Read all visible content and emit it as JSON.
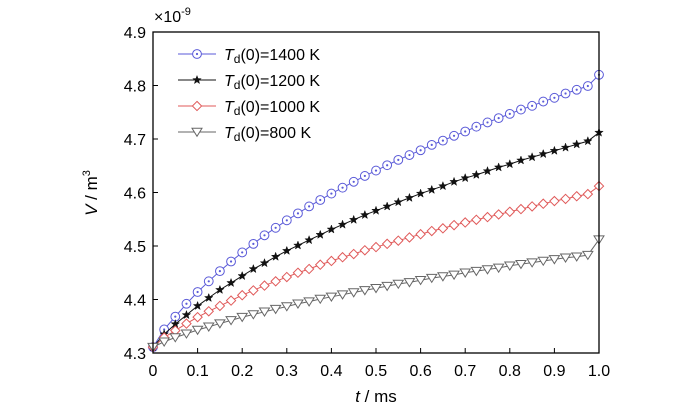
{
  "chart_data": {
    "type": "line",
    "xlabel_var": "t",
    "xlabel_unit": " / ms",
    "ylabel_var": "V",
    "ylabel_unit": " / m",
    "ylabel_sup": "3",
    "y_multiplier_base": "×10",
    "y_multiplier_exp": "-9",
    "xlim": [
      0,
      1.0
    ],
    "ylim": [
      4.3,
      4.9
    ],
    "x_ticks": [
      "0",
      "0.1",
      "0.2",
      "0.3",
      "0.4",
      "0.5",
      "0.6",
      "0.7",
      "0.8",
      "0.9",
      "1.0"
    ],
    "y_ticks": [
      "4.3",
      "4.4",
      "4.5",
      "4.6",
      "4.7",
      "4.8",
      "4.9"
    ],
    "grid": false,
    "legend_position": "top-left",
    "x": [
      0.0,
      0.025,
      0.05,
      0.075,
      0.1,
      0.125,
      0.15,
      0.175,
      0.2,
      0.225,
      0.25,
      0.275,
      0.3,
      0.325,
      0.35,
      0.375,
      0.4,
      0.425,
      0.45,
      0.475,
      0.5,
      0.525,
      0.55,
      0.575,
      0.6,
      0.625,
      0.65,
      0.675,
      0.7,
      0.725,
      0.75,
      0.775,
      0.8,
      0.825,
      0.85,
      0.875,
      0.9,
      0.925,
      0.95,
      0.975,
      1.0
    ],
    "series": [
      {
        "name_italic": "T",
        "name_sub": "d",
        "name_rest": "(0)=1400 K",
        "color": "#5a5ad8",
        "marker": "circle-dot",
        "values": [
          4.311,
          4.344,
          4.368,
          4.392,
          4.414,
          4.434,
          4.453,
          4.471,
          4.488,
          4.504,
          4.52,
          4.534,
          4.548,
          4.561,
          4.574,
          4.586,
          4.598,
          4.609,
          4.62,
          4.631,
          4.641,
          4.651,
          4.661,
          4.67,
          4.679,
          4.689,
          4.697,
          4.706,
          4.714,
          4.723,
          4.731,
          4.739,
          4.747,
          4.755,
          4.762,
          4.77,
          4.777,
          4.785,
          4.792,
          4.799,
          4.82
        ]
      },
      {
        "name_italic": "T",
        "name_sub": "d",
        "name_rest": "(0)=1200 K",
        "color": "#111111",
        "marker": "star",
        "values": [
          4.311,
          4.335,
          4.354,
          4.371,
          4.388,
          4.403,
          4.418,
          4.431,
          4.444,
          4.457,
          4.468,
          4.48,
          4.491,
          4.501,
          4.511,
          4.521,
          4.531,
          4.54,
          4.549,
          4.558,
          4.566,
          4.574,
          4.582,
          4.59,
          4.598,
          4.605,
          4.612,
          4.62,
          4.627,
          4.633,
          4.64,
          4.647,
          4.653,
          4.66,
          4.666,
          4.672,
          4.678,
          4.684,
          4.69,
          4.696,
          4.712
        ]
      },
      {
        "name_italic": "T",
        "name_sub": "d",
        "name_rest": "(0)=1000 K",
        "color": "#e05a5a",
        "marker": "diamond",
        "values": [
          4.311,
          4.329,
          4.342,
          4.355,
          4.367,
          4.378,
          4.388,
          4.398,
          4.408,
          4.417,
          4.426,
          4.434,
          4.442,
          4.45,
          4.457,
          4.465,
          4.472,
          4.479,
          4.485,
          4.492,
          4.498,
          4.504,
          4.51,
          4.516,
          4.522,
          4.528,
          4.533,
          4.539,
          4.544,
          4.549,
          4.554,
          4.559,
          4.564,
          4.569,
          4.574,
          4.579,
          4.584,
          4.588,
          4.593,
          4.597,
          4.612
        ]
      },
      {
        "name_italic": "T",
        "name_sub": "d",
        "name_rest": "(0)=800 K",
        "color": "#666666",
        "marker": "triangle-down",
        "values": [
          4.311,
          4.321,
          4.329,
          4.336,
          4.343,
          4.349,
          4.355,
          4.361,
          4.367,
          4.372,
          4.377,
          4.382,
          4.387,
          4.392,
          4.396,
          4.401,
          4.405,
          4.409,
          4.413,
          4.417,
          4.421,
          4.425,
          4.429,
          4.432,
          4.436,
          4.44,
          4.443,
          4.446,
          4.45,
          4.453,
          4.456,
          4.459,
          4.463,
          4.466,
          4.469,
          4.472,
          4.475,
          4.478,
          4.48,
          4.483,
          4.512
        ]
      }
    ]
  }
}
